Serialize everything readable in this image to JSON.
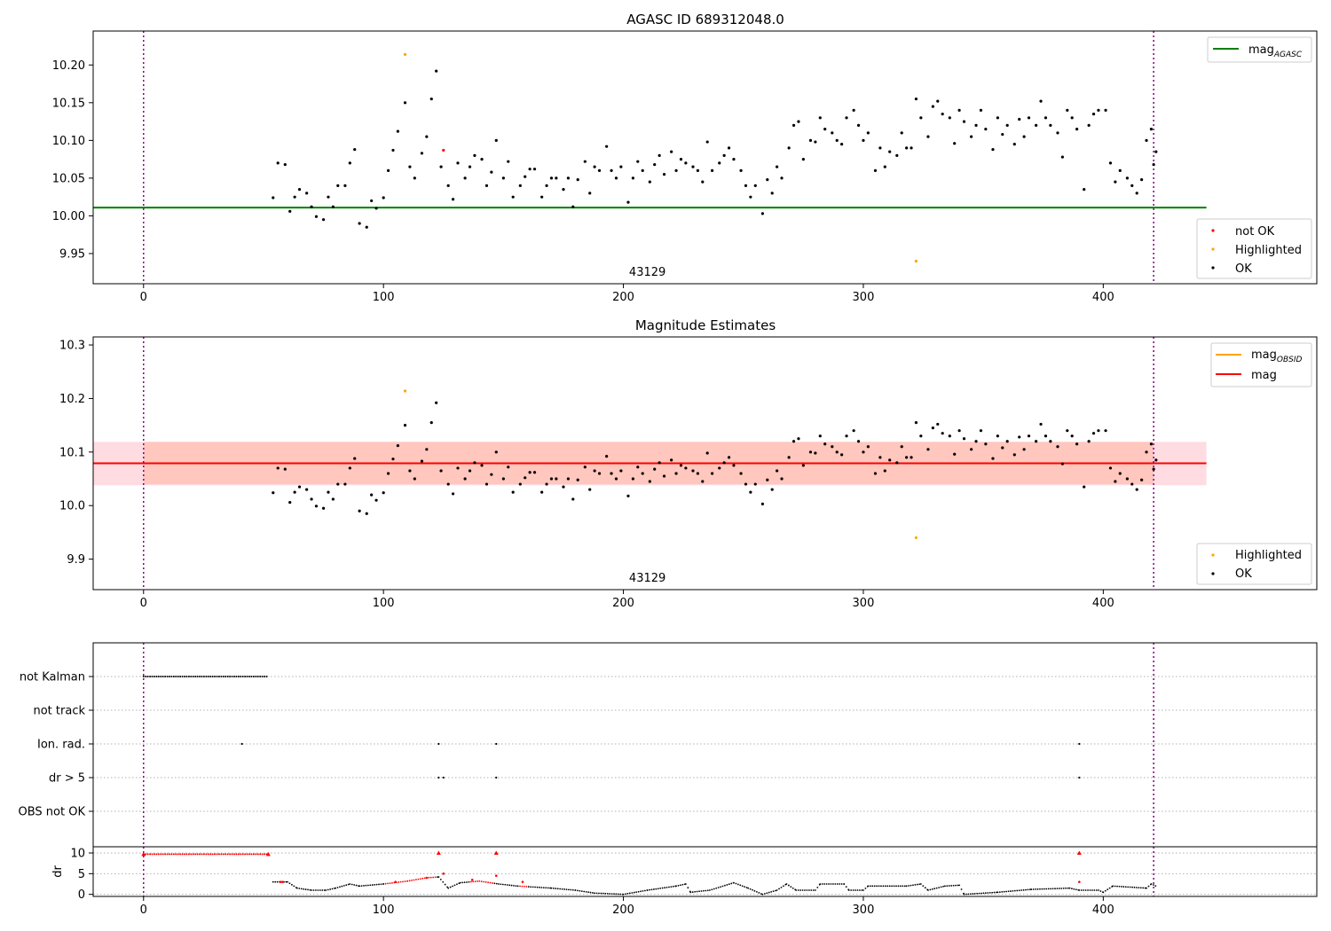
{
  "colors": {
    "ok": "#000000",
    "not_ok": "#ff0000",
    "highlighted": "#ffa500",
    "mag_agasc": "#008000",
    "mag_obsid": "#ffa500",
    "mag": "#ff0000",
    "band_outer": "#ffc0cb",
    "band_inner": "#ffa07a",
    "boundary": "#800080",
    "flag_grid": "#b0b0b0"
  },
  "chart_data": [
    {
      "type": "scatter",
      "title": "AGASC ID 689312048.0",
      "annotation": "43129",
      "xlim": [
        -21,
        489
      ],
      "ylim": [
        9.91,
        10.245
      ],
      "xticks": [
        "0",
        "100",
        "200",
        "300",
        "400"
      ],
      "yticks": [
        "9.95",
        "10.00",
        "10.05",
        "10.10",
        "10.15",
        "10.20"
      ],
      "vlines": [
        0,
        421
      ],
      "hline": {
        "name": "mag_AGASC",
        "y": 10.011,
        "x_range": [
          -21,
          443
        ]
      },
      "legend": {
        "placement": "upper right",
        "entries": [
          {
            "name": "mag",
            "sub": "AGASC"
          }
        ]
      },
      "points_legend": {
        "placement": "lower right",
        "entries": [
          "not OK",
          "Highlighted",
          "OK"
        ]
      },
      "series": [
        {
          "name": "OK",
          "points": [
            [
              54,
              10.024
            ],
            [
              56,
              10.07
            ],
            [
              59,
              10.068
            ],
            [
              61,
              10.006
            ],
            [
              63,
              10.025
            ],
            [
              65,
              10.035
            ],
            [
              68,
              10.03
            ],
            [
              70,
              10.012
            ],
            [
              72,
              9.999
            ],
            [
              75,
              9.995
            ],
            [
              77,
              10.025
            ],
            [
              79,
              10.012
            ],
            [
              81,
              10.04
            ],
            [
              84,
              10.04
            ],
            [
              86,
              10.07
            ],
            [
              88,
              10.088
            ],
            [
              90,
              9.99
            ],
            [
              93,
              9.985
            ],
            [
              95,
              10.02
            ],
            [
              97,
              10.01
            ],
            [
              100,
              10.024
            ],
            [
              102,
              10.06
            ],
            [
              104,
              10.087
            ],
            [
              106,
              10.112
            ],
            [
              109,
              10.15
            ],
            [
              111,
              10.065
            ],
            [
              113,
              10.05
            ],
            [
              116,
              10.083
            ],
            [
              118,
              10.105
            ],
            [
              120,
              10.155
            ],
            [
              122,
              10.192
            ],
            [
              124,
              10.065
            ],
            [
              127,
              10.04
            ],
            [
              129,
              10.022
            ],
            [
              131,
              10.07
            ],
            [
              134,
              10.05
            ],
            [
              136,
              10.065
            ],
            [
              138,
              10.08
            ],
            [
              141,
              10.075
            ],
            [
              143,
              10.04
            ],
            [
              145,
              10.058
            ],
            [
              147,
              10.1
            ],
            [
              150,
              10.05
            ],
            [
              152,
              10.072
            ],
            [
              154,
              10.025
            ],
            [
              157,
              10.04
            ],
            [
              159,
              10.052
            ],
            [
              161,
              10.062
            ],
            [
              163,
              10.062
            ],
            [
              166,
              10.025
            ],
            [
              168,
              10.04
            ],
            [
              170,
              10.05
            ],
            [
              172,
              10.05
            ],
            [
              175,
              10.035
            ],
            [
              177,
              10.05
            ],
            [
              179,
              10.012
            ],
            [
              181,
              10.048
            ],
            [
              184,
              10.072
            ],
            [
              186,
              10.03
            ],
            [
              188,
              10.065
            ],
            [
              190,
              10.06
            ],
            [
              193,
              10.092
            ],
            [
              195,
              10.06
            ],
            [
              197,
              10.05
            ],
            [
              199,
              10.065
            ],
            [
              202,
              10.018
            ],
            [
              204,
              10.05
            ],
            [
              206,
              10.072
            ],
            [
              208,
              10.06
            ],
            [
              211,
              10.045
            ],
            [
              213,
              10.068
            ],
            [
              215,
              10.08
            ],
            [
              217,
              10.055
            ],
            [
              220,
              10.085
            ],
            [
              222,
              10.06
            ],
            [
              224,
              10.075
            ],
            [
              226,
              10.07
            ],
            [
              229,
              10.065
            ],
            [
              231,
              10.06
            ],
            [
              233,
              10.045
            ],
            [
              235,
              10.098
            ],
            [
              237,
              10.06
            ],
            [
              240,
              10.07
            ],
            [
              242,
              10.08
            ],
            [
              244,
              10.09
            ],
            [
              246,
              10.075
            ],
            [
              249,
              10.06
            ],
            [
              251,
              10.04
            ],
            [
              253,
              10.025
            ],
            [
              255,
              10.04
            ],
            [
              258,
              10.003
            ],
            [
              260,
              10.048
            ],
            [
              262,
              10.03
            ],
            [
              264,
              10.065
            ],
            [
              266,
              10.05
            ],
            [
              269,
              10.09
            ],
            [
              271,
              10.12
            ],
            [
              273,
              10.125
            ],
            [
              275,
              10.075
            ],
            [
              278,
              10.1
            ],
            [
              280,
              10.098
            ],
            [
              282,
              10.13
            ],
            [
              284,
              10.115
            ],
            [
              287,
              10.11
            ],
            [
              289,
              10.1
            ],
            [
              291,
              10.095
            ],
            [
              293,
              10.13
            ],
            [
              296,
              10.14
            ],
            [
              298,
              10.12
            ],
            [
              300,
              10.1
            ],
            [
              302,
              10.11
            ],
            [
              305,
              10.06
            ],
            [
              307,
              10.09
            ],
            [
              309,
              10.065
            ],
            [
              311,
              10.085
            ],
            [
              314,
              10.08
            ],
            [
              316,
              10.11
            ],
            [
              318,
              10.09
            ],
            [
              320,
              10.09
            ],
            [
              322,
              10.155
            ],
            [
              324,
              10.13
            ],
            [
              327,
              10.105
            ],
            [
              329,
              10.145
            ],
            [
              331,
              10.152
            ],
            [
              333,
              10.135
            ],
            [
              336,
              10.13
            ],
            [
              338,
              10.096
            ],
            [
              340,
              10.14
            ],
            [
              342,
              10.125
            ],
            [
              345,
              10.105
            ],
            [
              347,
              10.12
            ],
            [
              349,
              10.14
            ],
            [
              351,
              10.115
            ],
            [
              354,
              10.088
            ],
            [
              356,
              10.13
            ],
            [
              358,
              10.108
            ],
            [
              360,
              10.12
            ],
            [
              363,
              10.095
            ],
            [
              365,
              10.128
            ],
            [
              367,
              10.105
            ],
            [
              369,
              10.13
            ],
            [
              372,
              10.12
            ],
            [
              374,
              10.152
            ],
            [
              376,
              10.13
            ],
            [
              378,
              10.12
            ],
            [
              381,
              10.11
            ],
            [
              383,
              10.078
            ],
            [
              385,
              10.14
            ],
            [
              387,
              10.13
            ],
            [
              389,
              10.115
            ],
            [
              392,
              10.035
            ],
            [
              394,
              10.12
            ],
            [
              396,
              10.135
            ],
            [
              398,
              10.14
            ],
            [
              401,
              10.14
            ],
            [
              403,
              10.07
            ],
            [
              405,
              10.045
            ],
            [
              407,
              10.06
            ],
            [
              410,
              10.05
            ],
            [
              412,
              10.04
            ],
            [
              414,
              10.03
            ],
            [
              416,
              10.048
            ],
            [
              418,
              10.1
            ],
            [
              420,
              10.115
            ],
            [
              421,
              10.068
            ],
            [
              422,
              10.085
            ]
          ]
        },
        {
          "name": "Highlighted",
          "points": [
            [
              109,
              10.214
            ],
            [
              322,
              9.94
            ]
          ]
        },
        {
          "name": "not OK",
          "points": [
            [
              125,
              10.087
            ]
          ]
        }
      ]
    },
    {
      "type": "scatter",
      "title": "Magnitude Estimates",
      "annotation": "43129",
      "xlim": [
        -21,
        489
      ],
      "ylim": [
        9.843,
        10.315
      ],
      "xticks": [
        "0",
        "100",
        "200",
        "300",
        "400"
      ],
      "yticks": [
        "9.9",
        "10.0",
        "10.1",
        "10.2",
        "10.3"
      ],
      "vlines": [
        0,
        421
      ],
      "hlines": [
        {
          "name": "mag_OBSID",
          "y": 10.079,
          "x_range": [
            -21,
            443
          ],
          "band": [
            10.04,
            10.119
          ]
        },
        {
          "name": "mag",
          "y": 10.079,
          "x_range": [
            -21,
            443
          ],
          "band": [
            10.038,
            10.119
          ]
        }
      ],
      "legend": {
        "placement": "upper right",
        "entries": [
          {
            "name": "mag",
            "sub": "OBSID"
          },
          {
            "name": "mag",
            "sub": ""
          }
        ]
      },
      "points_legend": {
        "placement": "lower right",
        "entries": [
          "Highlighted",
          "OK"
        ]
      },
      "series": [
        {
          "name": "OK",
          "points": "same_as_top"
        },
        {
          "name": "Highlighted",
          "points": [
            [
              109,
              10.214
            ],
            [
              322,
              9.94
            ]
          ]
        }
      ]
    },
    {
      "type": "scatter",
      "title": "",
      "xlim": [
        -21,
        489
      ],
      "categories": [
        "not Kalman",
        "not track",
        "Ion. rad.",
        "dr > 5",
        "OBS not OK"
      ],
      "vlines": [
        0,
        421
      ],
      "flags": {
        "not Kalman": {
          "ranges": [
            [
              0,
              52
            ]
          ]
        },
        "not track": {
          "ranges": []
        },
        "Ion. rad.": {
          "points": [
            41,
            123,
            147,
            390
          ]
        },
        "dr > 5": {
          "points": [
            123,
            125,
            147,
            390
          ]
        },
        "OBS not OK": {
          "points": []
        }
      }
    },
    {
      "type": "scatter",
      "ylabel": "dr",
      "xlim": [
        -21,
        489
      ],
      "ylim": [
        -0.5,
        11.5
      ],
      "xticks": [
        "0",
        "100",
        "200",
        "300",
        "400"
      ],
      "yticks": [
        "0",
        "5",
        "10"
      ],
      "vlines": [
        0,
        421
      ],
      "dr_curve": [
        [
          54,
          3.0
        ],
        [
          60,
          3.0
        ],
        [
          64,
          1.5
        ],
        [
          70,
          1.0
        ],
        [
          76,
          1.0
        ],
        [
          80,
          1.5
        ],
        [
          86,
          2.5
        ],
        [
          90,
          2.0
        ],
        [
          100,
          2.5
        ],
        [
          110,
          3.2
        ],
        [
          118,
          4.0
        ],
        [
          123,
          4.2
        ],
        [
          127,
          1.5
        ],
        [
          132,
          2.8
        ],
        [
          140,
          3.2
        ],
        [
          148,
          2.5
        ],
        [
          156,
          2.0
        ],
        [
          170,
          1.5
        ],
        [
          180,
          1.0
        ],
        [
          188,
          0.3
        ],
        [
          200,
          0.0
        ],
        [
          210,
          1.0
        ],
        [
          222,
          2.0
        ],
        [
          226,
          2.5
        ],
        [
          228,
          0.5
        ],
        [
          236,
          1.0
        ],
        [
          246,
          2.8
        ],
        [
          252,
          1.5
        ],
        [
          258,
          0.0
        ],
        [
          264,
          1.0
        ],
        [
          268,
          2.5
        ],
        [
          272,
          1.0
        ],
        [
          280,
          1.0
        ],
        [
          282,
          2.5
        ],
        [
          292,
          2.5
        ],
        [
          294,
          1.0
        ],
        [
          300,
          1.0
        ],
        [
          302,
          2.0
        ],
        [
          318,
          2.0
        ],
        [
          324,
          2.5
        ],
        [
          327,
          1.0
        ],
        [
          334,
          2.0
        ],
        [
          340,
          2.2
        ],
        [
          342,
          0.0
        ],
        [
          356,
          0.5
        ],
        [
          370,
          1.2
        ],
        [
          386,
          1.5
        ],
        [
          390,
          1.0
        ],
        [
          398,
          1.0
        ],
        [
          400,
          0.5
        ],
        [
          404,
          2.0
        ],
        [
          418,
          1.5
        ],
        [
          420,
          2.5
        ],
        [
          422,
          2.0
        ]
      ],
      "red_points": [
        [
          0,
          9.7
        ],
        [
          52,
          9.7
        ],
        [
          57,
          3.0
        ],
        [
          58,
          3.0
        ],
        [
          105,
          3.0
        ],
        [
          118,
          4.0
        ],
        [
          123,
          10
        ],
        [
          125,
          5.0
        ],
        [
          137,
          3.5
        ],
        [
          147,
          10
        ],
        [
          147,
          4.5
        ],
        [
          158,
          3.0
        ],
        [
          390,
          10
        ],
        [
          390,
          3.0
        ]
      ]
    }
  ]
}
